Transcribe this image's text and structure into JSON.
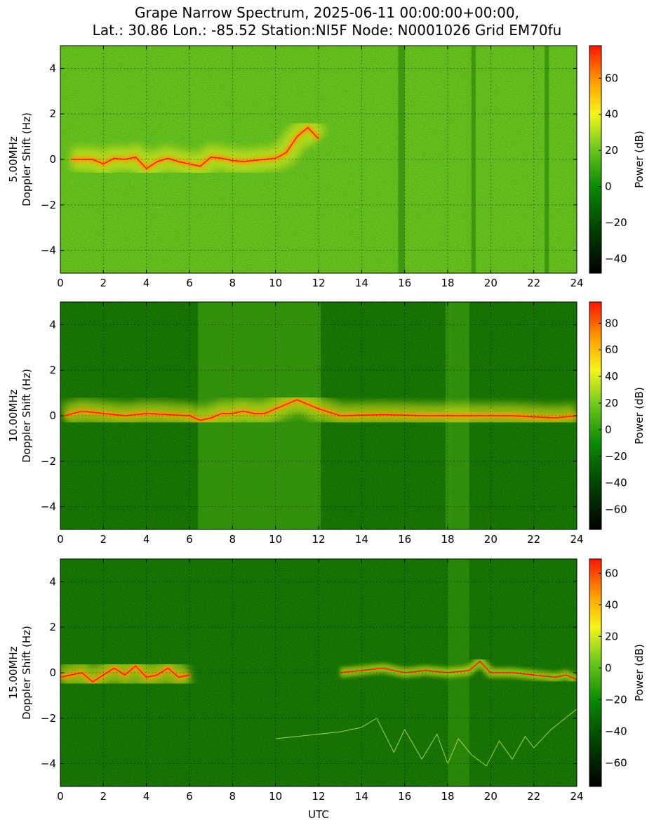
{
  "figure": {
    "title_line1": "Grape Narrow Spectrum, 2025-06-11 00:00:00+00:00,",
    "title_line2": "Lat.: 30.86 Lon.: -85.52 Station:NI5F Node: N0001026 Grid EM70fu",
    "xlabel": "UTC"
  },
  "colors": {
    "background_green": "#2c9a0c",
    "noise_green": "#53b318",
    "dark_green": "#0d6b00",
    "yellow": "#f2f21a",
    "orange": "#ff9400",
    "red": "#ff1c00",
    "black": "#000000"
  },
  "chart_data": [
    {
      "type": "heatmap",
      "frequency_label": "5.00MHz",
      "ylabel": "Doppler Shift (Hz)",
      "colorbar_label": "Power (dB)",
      "xlim": [
        0,
        24
      ],
      "ylim": [
        -5,
        5
      ],
      "x_ticks": [
        "0",
        "2",
        "4",
        "6",
        "8",
        "10",
        "12",
        "14",
        "16",
        "18",
        "20",
        "22",
        "24"
      ],
      "y_ticks": [
        "−4",
        "−2",
        "0",
        "2",
        "4"
      ],
      "colorbar_range": [
        -48,
        78
      ],
      "colorbar_ticks": [
        "−40",
        "−20",
        "0",
        "20",
        "40",
        "60"
      ],
      "grid": true,
      "doppler_trace": {
        "x": [
          0.5,
          1.5,
          2,
          2.5,
          3,
          3.5,
          4,
          4.5,
          5,
          5.5,
          6,
          6.5,
          7,
          7.5,
          8,
          8.5,
          9,
          9.5,
          10,
          10.5,
          11,
          11.5,
          12
        ],
        "y": [
          0,
          0,
          -0.2,
          0.05,
          0,
          0.1,
          -0.4,
          -0.1,
          0.05,
          -0.1,
          -0.2,
          -0.3,
          0.1,
          0.05,
          -0.05,
          -0.1,
          -0.05,
          0,
          0.05,
          0.3,
          1.0,
          1.4,
          0.9
        ]
      },
      "dark_bands": [
        [
          15.7,
          16.0
        ],
        [
          19.1,
          19.3
        ],
        [
          22.5,
          22.7
        ]
      ]
    },
    {
      "type": "heatmap",
      "frequency_label": "10.00MHz",
      "ylabel": "Doppler Shift (Hz)",
      "colorbar_label": "Power (dB)",
      "xlim": [
        0,
        24
      ],
      "ylim": [
        -5,
        5
      ],
      "x_ticks": [
        "0",
        "2",
        "4",
        "6",
        "8",
        "10",
        "12",
        "14",
        "16",
        "18",
        "20",
        "22",
        "24"
      ],
      "y_ticks": [
        "−4",
        "−2",
        "0",
        "2",
        "4"
      ],
      "colorbar_range": [
        -75,
        96
      ],
      "colorbar_ticks": [
        "−60",
        "−40",
        "−20",
        "0",
        "20",
        "40",
        "60",
        "80"
      ],
      "grid": true,
      "doppler_trace": {
        "x": [
          0.2,
          1,
          2,
          3,
          4,
          5,
          6,
          6.5,
          7,
          7.5,
          8,
          8.5,
          9,
          9.5,
          10,
          10.5,
          11,
          11.5,
          12,
          13,
          15,
          17,
          19,
          21,
          23,
          24
        ],
        "y": [
          0,
          0.2,
          0.1,
          0,
          0.1,
          0.05,
          0,
          -0.2,
          -0.1,
          0.1,
          0.1,
          0.2,
          0.1,
          0.1,
          0.3,
          0.5,
          0.7,
          0.5,
          0.3,
          0,
          0.05,
          0,
          0,
          0,
          -0.1,
          0
        ]
      },
      "dark_bands": [
        [
          18.0,
          18.2
        ],
        [
          18.8,
          19.0
        ]
      ]
    },
    {
      "type": "heatmap",
      "frequency_label": "15.00MHz",
      "ylabel": "Doppler Shift (Hz)",
      "colorbar_label": "Power (dB)",
      "xlim": [
        0,
        24
      ],
      "ylim": [
        -5,
        5
      ],
      "x_ticks": [
        "0",
        "2",
        "4",
        "6",
        "8",
        "10",
        "12",
        "14",
        "16",
        "18",
        "20",
        "22",
        "24"
      ],
      "y_ticks": [
        "−4",
        "−2",
        "0",
        "2",
        "4"
      ],
      "colorbar_range": [
        -75,
        69
      ],
      "colorbar_ticks": [
        "−60",
        "−40",
        "−20",
        "0",
        "20",
        "40",
        "60"
      ],
      "grid": true,
      "doppler_trace": {
        "x": [
          0,
          0.5,
          1,
          1.5,
          2,
          2.5,
          3,
          3.5,
          4,
          4.5,
          5,
          5.5,
          6
        ],
        "y": [
          -0.2,
          -0.1,
          0,
          -0.4,
          -0.1,
          0.2,
          -0.1,
          0.3,
          -0.2,
          -0.1,
          0.2,
          -0.2,
          -0.1
        ]
      },
      "doppler_trace_2": {
        "x": [
          13,
          14,
          15,
          16,
          17,
          18,
          19,
          19.5,
          20,
          21,
          22,
          23,
          23.5,
          24
        ],
        "y": [
          0,
          0.1,
          0.2,
          0,
          0.1,
          0,
          0.1,
          0.5,
          0,
          0,
          -0.1,
          -0.2,
          -0.1,
          -0.3
        ]
      },
      "faint_trace": {
        "x": [
          10,
          11,
          12,
          13,
          14,
          14.7,
          15.5,
          16,
          16.8,
          17.5,
          18,
          18.5,
          19.1,
          19.8,
          20.4,
          21,
          21.6,
          22,
          22.8,
          24
        ],
        "y": [
          -2.9,
          -2.8,
          -2.7,
          -2.6,
          -2.4,
          -2.0,
          -3.5,
          -2.5,
          -3.8,
          -2.7,
          -4.0,
          -2.9,
          -3.6,
          -4.1,
          -3.0,
          -3.8,
          -2.8,
          -3.3,
          -2.5,
          -1.6
        ]
      }
    }
  ]
}
